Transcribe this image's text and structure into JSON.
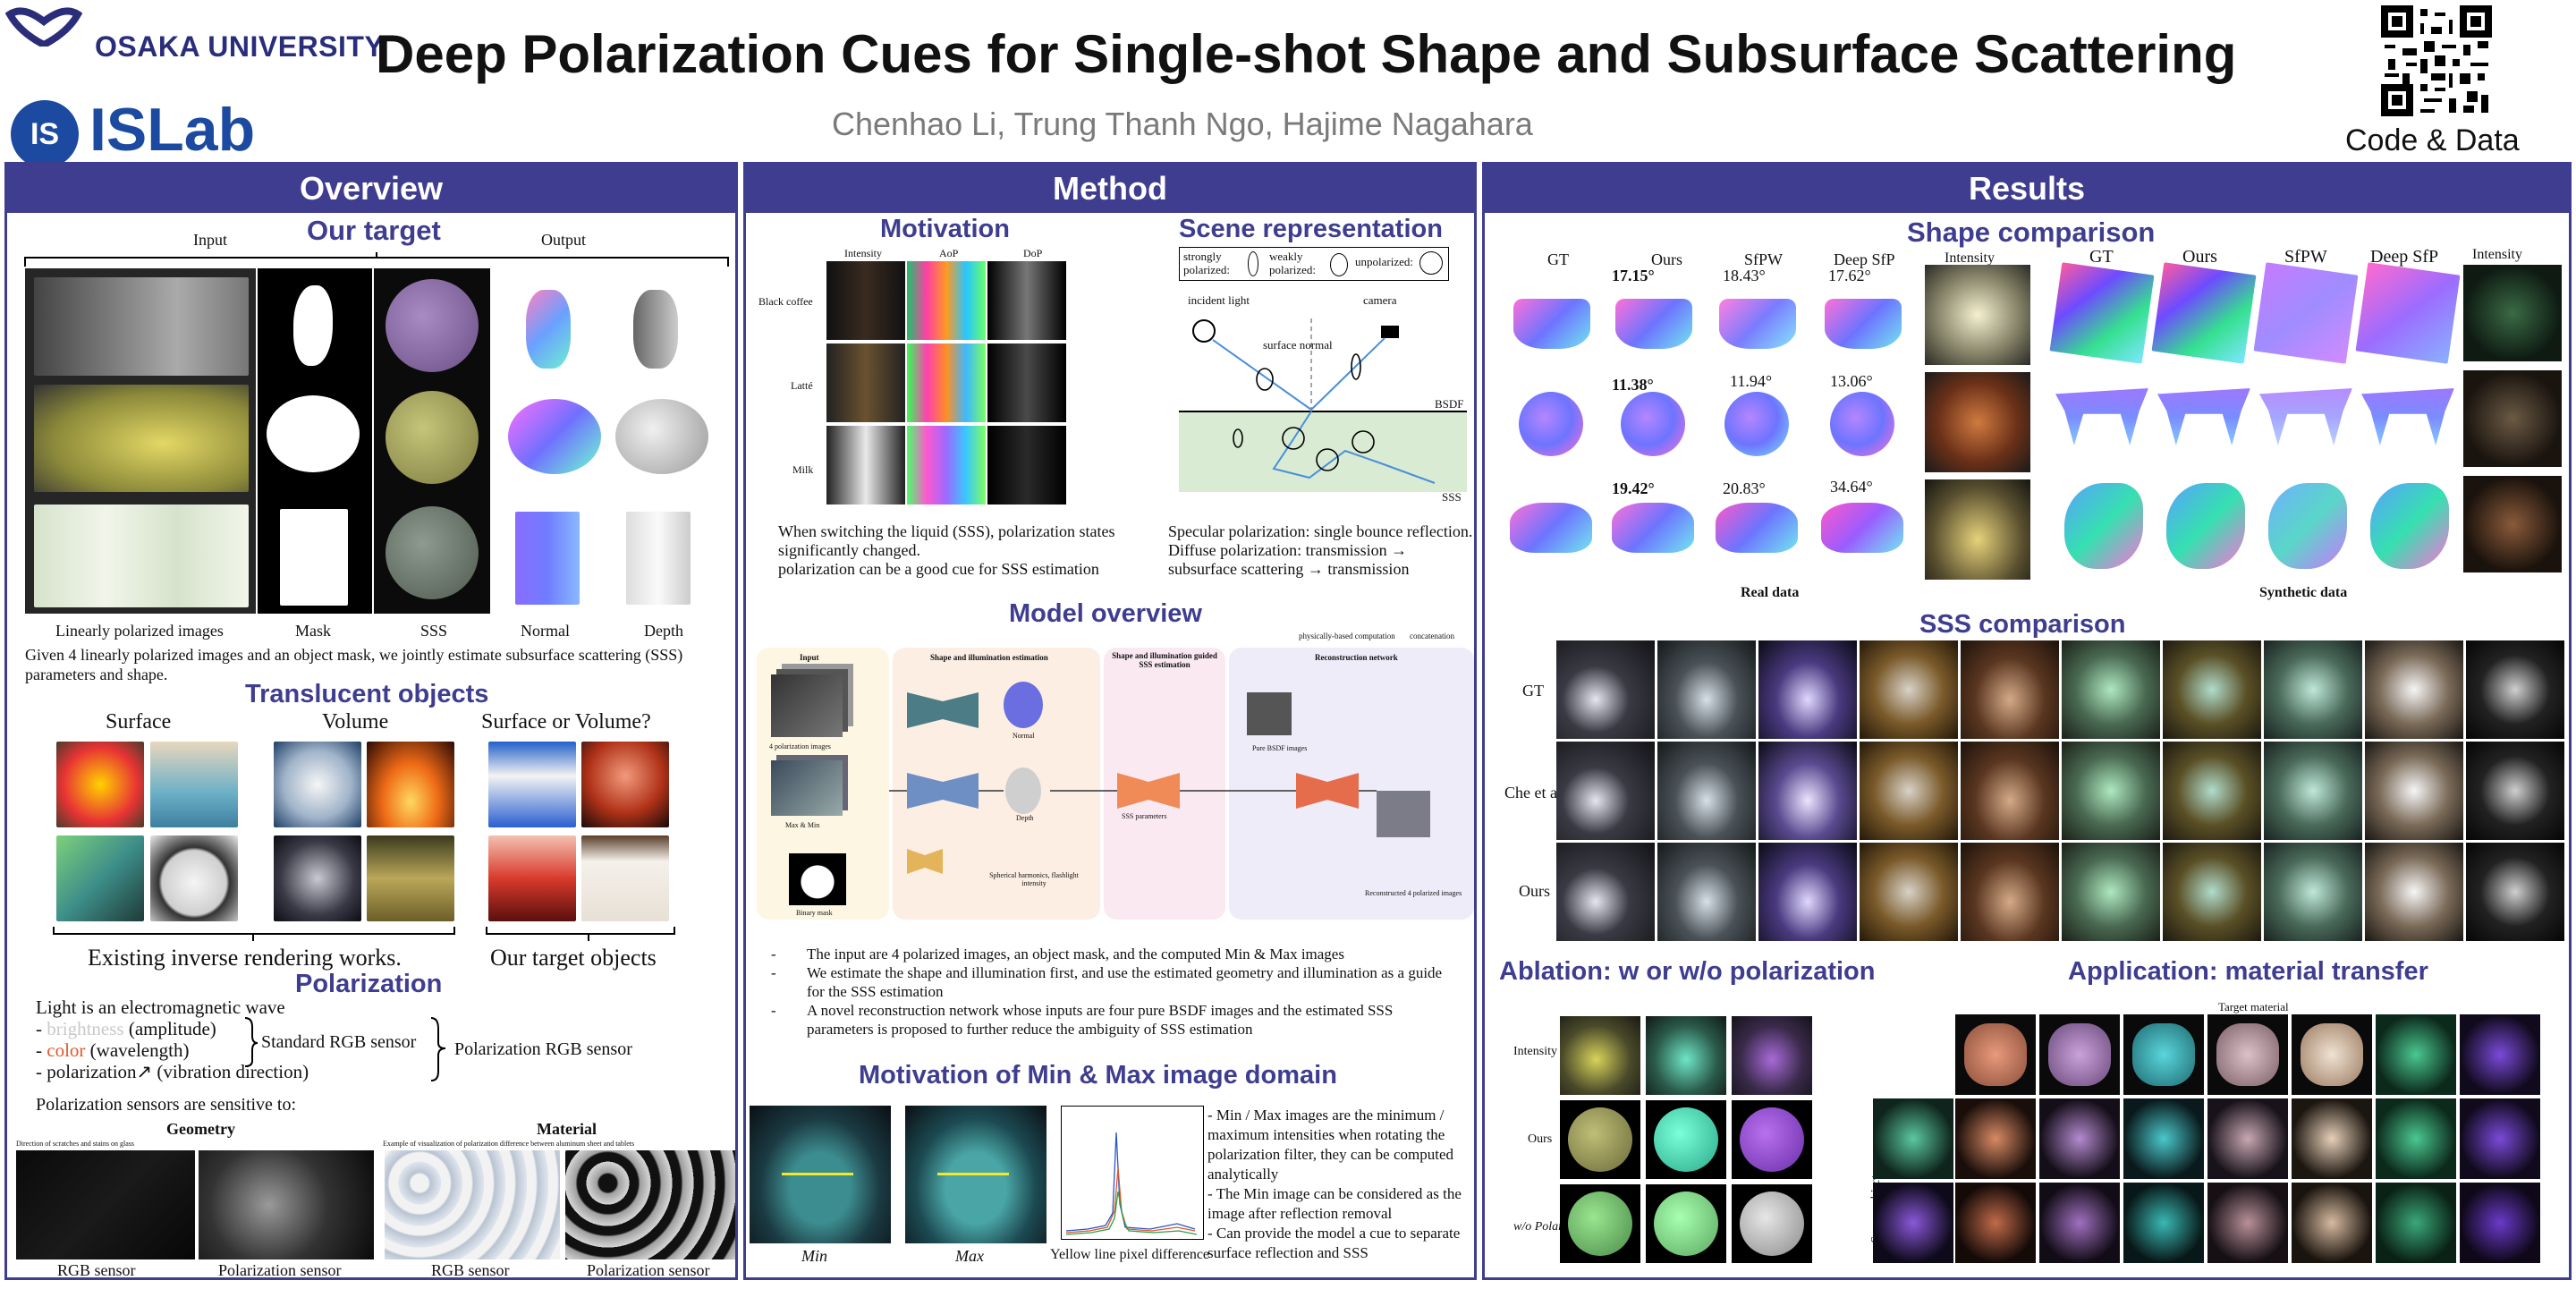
{
  "header": {
    "university": "OSAKA UNIVERSITY",
    "lab": "ISLab",
    "title": "Deep Polarization Cues for Single-shot Shape and Subsurface Scattering",
    "authors": "Chenhao Li, Trung Thanh Ngo, Hajime Nagahara",
    "code_label": "Code & Data"
  },
  "overview": {
    "heading": "Overview",
    "target_title": "Our target",
    "input_label": "Input",
    "output_label": "Output",
    "col_labels": [
      "Linearly polarized images",
      "Mask",
      "SSS",
      "Normal",
      "Depth"
    ],
    "description": "Given 4 linearly polarized images and an object mask, we jointly estimate subsurface scattering (SSS) parameters and shape.",
    "translucent_title": "Translucent objects",
    "surface": "Surface",
    "volume": "Volume",
    "surface_or_volume": "Surface or Volume?",
    "existing": "Existing inverse rendering works.",
    "our_objects": "Our target objects",
    "polarization_title": "Polarization",
    "light": "Light is an electromagnetic wave",
    "brightness_pre": "- ",
    "brightness_word": "brightness",
    "brightness_post": " (amplitude)",
    "color_pre": "- ",
    "color_word": "color",
    "color_post": " (wavelength)",
    "polar_line": "- polarization↗ (vibration direction)",
    "standard_rgb": "Standard RGB sensor",
    "polar_rgb": "Polarization RGB sensor",
    "sensitive": "Polarization sensors are sensitive to:",
    "geometry": "Geometry",
    "material": "Material",
    "geometry_caption": "Direction of scratches and stains on glass",
    "material_caption": "Example of visualization of polarization difference between aluminum sheet and tablets",
    "sensor_labels": [
      "RGB sensor",
      "Polarization sensor",
      "RGB sensor",
      "Polarization sensor"
    ]
  },
  "method": {
    "heading": "Method",
    "motivation_title": "Motivation",
    "col_heads": [
      "Intensity",
      "AoP",
      "DoP"
    ],
    "rows": [
      "Black coffee",
      "Latté",
      "Milk"
    ],
    "scene_title": "Scene representation",
    "strongly": "strongly polarized:",
    "weakly": "weakly polarized:",
    "unpolarized": "unpolarized:",
    "incident": "incident light",
    "camera": "camera",
    "surface_normal": "surface normal",
    "bsdf": "BSDF",
    "sss": "SSS",
    "motivation_text": [
      "When switching the liquid (SSS), polarization states",
      "significantly changed.",
      "polarization can be a good cue for SSS estimation"
    ],
    "scene_text": [
      "Specular polarization: single bounce reflection.",
      "Diffuse polarization: transmission →",
      "subsurface scattering → transmission"
    ],
    "model_title": "Model overview",
    "legend_pb": "physically-based computation",
    "legend_concat": "concatenation",
    "stage_labels": [
      "Input",
      "Shape and illumination estimation",
      "Shape and illumination guided SSS estimation",
      "Reconstruction network"
    ],
    "node_labels": [
      "4 polarization images",
      "Max & Min",
      "Binary mask",
      "Normal",
      "Depth",
      "Spherical harmonics, flashlight intensity",
      "SSS parameters",
      "Pure BSDF images",
      "Reconstructed 4 polarized images"
    ],
    "bullets": [
      "The input are 4 polarized images, an object mask, and the computed Min & Max images",
      "We estimate the shape and illumination first, and use the estimated geometry and illumination as a guide for the SSS estimation",
      "A novel reconstruction network whose inputs are four pure BSDF images and the estimated SSS parameters is proposed to further reduce the ambiguity of SSS estimation"
    ],
    "minmax_title": "Motivation of Min & Max image domain",
    "min": "Min",
    "max": "Max",
    "yellow": "Yellow line pixel difference",
    "minmax_text": [
      "- Min / Max images are the minimum /",
      "maximum intensities when rotating the",
      "polarization filter, they can be computed",
      "analytically",
      "- The Min image can be considered as the",
      "image after reflection removal",
      "- Can provide the model a cue to separate",
      "surface reflection and SSS"
    ]
  },
  "results": {
    "heading": "Results",
    "shape_title": "Shape comparison",
    "real_cols": [
      "GT",
      "Ours",
      "SfPW",
      "Deep SfP",
      "Intensity"
    ],
    "real_errors": [
      [
        "17.15°",
        "18.43°",
        "17.62°"
      ],
      [
        "11.38°",
        "11.94°",
        "13.06°"
      ],
      [
        "19.42°",
        "20.83°",
        "34.64°"
      ]
    ],
    "synth_cols": [
      "GT",
      "Ours",
      "SfPW",
      "Deep SfP",
      "Intensity"
    ],
    "real_data": "Real data",
    "synthetic_data": "Synthetic data",
    "sss_title": "SSS comparison",
    "sss_rows": [
      "GT",
      "Che et al.",
      "Ours"
    ],
    "ablation_title": "Ablation: w or w/o polarization",
    "ablation_rows": [
      "Intensity",
      "Ours",
      "w/o Polar"
    ],
    "application_title": "Application: material transfer",
    "target_material": "Target material",
    "source_object": "Source object"
  },
  "colors": {
    "accent": "#3f3d8f",
    "logo_blue": "#1c4aa0"
  }
}
